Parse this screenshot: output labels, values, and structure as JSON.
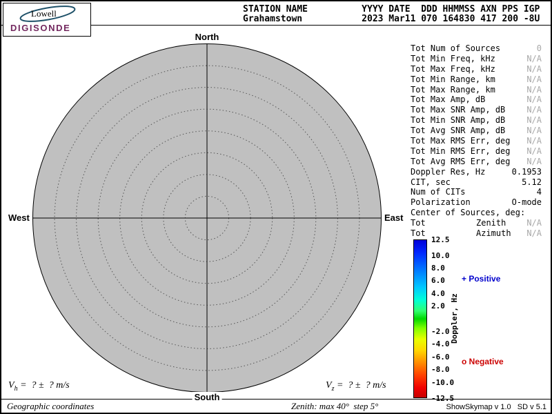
{
  "logo": {
    "brand": "Lowell",
    "product": "DIGISONDE"
  },
  "header": {
    "station_label": "STATION NAME",
    "station_value": "Grahamstown",
    "columns": [
      {
        "label": "YYYY",
        "value": "2023",
        "w": 4
      },
      {
        "label": "DATE",
        "value": "Mar11",
        "w": 5
      },
      {
        "label": "DDD",
        "value": "070",
        "w": 3
      },
      {
        "label": "HHMMSS",
        "value": "164830",
        "w": 6
      },
      {
        "label": "AXN",
        "value": "417",
        "w": 3
      },
      {
        "label": "PPS",
        "value": "200",
        "w": 3
      },
      {
        "label": "IGP",
        "value": "-8U",
        "w": 3
      }
    ]
  },
  "stats": {
    "rows": [
      {
        "label": "Tot Num of Sources",
        "value": "0",
        "muted": true
      },
      {
        "label": "Tot Min Freq, kHz",
        "value": "N/A",
        "muted": true
      },
      {
        "label": "Tot Max Freq, kHz",
        "value": "N/A",
        "muted": true
      },
      {
        "label": "Tot Min Range, km",
        "value": "N/A",
        "muted": true
      },
      {
        "label": "Tot Max Range, km",
        "value": "N/A",
        "muted": true
      },
      {
        "label": "Tot Max Amp, dB",
        "value": "N/A",
        "muted": true
      },
      {
        "label": "Tot Max SNR Amp, dB",
        "value": "N/A",
        "muted": true
      },
      {
        "label": "Tot Min SNR Amp, dB",
        "value": "N/A",
        "muted": true
      },
      {
        "label": "Tot Avg SNR Amp, dB",
        "value": "N/A",
        "muted": true
      },
      {
        "label": "Tot Max RMS Err, deg",
        "value": "N/A",
        "muted": true
      },
      {
        "label": "Tot Min RMS Err, deg",
        "value": "N/A",
        "muted": true
      },
      {
        "label": "Tot Avg RMS Err, deg",
        "value": "N/A",
        "muted": true
      },
      {
        "label": "Doppler Res, Hz",
        "value": "0.1953",
        "muted": false
      },
      {
        "label": "CIT, sec",
        "value": "5.12",
        "muted": false
      },
      {
        "label": "Num of CITs",
        "value": "4",
        "muted": false
      },
      {
        "label": "Polarization",
        "value": "O-mode",
        "muted": false
      },
      {
        "label": "Center of Sources, deg:",
        "value": "",
        "muted": false
      },
      {
        "label": "Tot",
        "mid": "Zenith",
        "value": "N/A",
        "muted": true
      },
      {
        "label": "Tot",
        "mid": "Azimuth",
        "value": "N/A",
        "muted": true
      }
    ]
  },
  "plot": {
    "compass": {
      "north": "North",
      "south": "South",
      "east": "East",
      "west": "West"
    },
    "max_zenith_deg": 40,
    "ring_step_deg": 5,
    "disc_color": "#c0c0c0"
  },
  "colorbar": {
    "label": "Doppler, Hz",
    "range": [
      -12.5,
      12.5
    ],
    "ticks": [
      12.5,
      10.0,
      8.0,
      6.0,
      4.0,
      2.0,
      -2.0,
      -4.0,
      -6.0,
      -8.0,
      -10.0,
      -12.5
    ],
    "positive_symbol": "+",
    "positive_label": " Positive",
    "positive_color": "#0000cc",
    "negative_symbol": "o",
    "negative_label": " Negative",
    "negative_color": "#cc0000"
  },
  "footer": {
    "vh": {
      "sym": "V",
      "sub": "h",
      "rest": " =  ? ±  ? m/s"
    },
    "vz": {
      "sym": "V",
      "sub": "z",
      "rest": " =  ? ±  ? m/s"
    },
    "coords": "Geographic coordinates",
    "zenith_note": "Zenith: max 40°  step 5°",
    "version": "ShowSkymap v 1.0   SD v 5.1"
  },
  "chart_data": {
    "type": "scatter",
    "subtype": "polar_skymap",
    "title": "Digisonde skymap — Grahamstown 2023 Mar11 070 164830",
    "points": [],
    "num_sources": 0,
    "polar_axis": {
      "max_zenith_deg": 40,
      "ring_step_deg": 5,
      "compass": [
        "North",
        "East",
        "South",
        "West"
      ],
      "coordinates": "Geographic coordinates"
    },
    "colorbar": {
      "label": "Doppler, Hz",
      "min": -12.5,
      "max": 12.5,
      "ticks": [
        12.5,
        10.0,
        8.0,
        6.0,
        4.0,
        2.0,
        -2.0,
        -4.0,
        -6.0,
        -8.0,
        -10.0,
        -12.5
      ]
    },
    "legend": [
      {
        "marker": "+",
        "label": "Positive",
        "color": "#0000cc"
      },
      {
        "marker": "o",
        "label": "Negative",
        "color": "#cc0000"
      }
    ],
    "velocities": {
      "vh": "? ± ? m/s",
      "vz": "? ± ? m/s"
    }
  }
}
